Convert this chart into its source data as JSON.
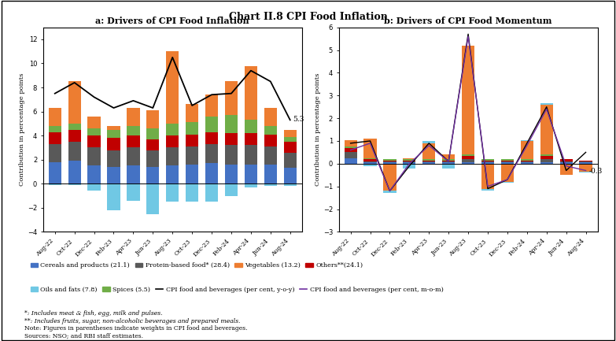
{
  "title": "Chart II.8 CPI Food Inflation",
  "panel_a_title": "a: Drivers of CPI Food Inflation",
  "panel_b_title": "b: Drivers of CPI Food Momentum",
  "x_labels": [
    "Aug-22",
    "Oct-22",
    "Dec-22",
    "Feb-23",
    "Apr-23",
    "Jun-23",
    "Aug-23",
    "Oct-23",
    "Dec-23",
    "Feb-24",
    "Apr-24",
    "Jun-24",
    "Aug-24"
  ],
  "ylabel_a": "Contribution in percentage points",
  "ylabel_b": "Contribution in percentage points",
  "colors": {
    "cereals": "#4472C4",
    "protein": "#595959",
    "vegetables": "#ED7D31",
    "others": "#C00000",
    "oils": "#70C8E4",
    "spices": "#70AD47"
  },
  "panel_a": {
    "cereals": [
      1.8,
      1.9,
      1.5,
      1.4,
      1.5,
      1.4,
      1.5,
      1.6,
      1.7,
      1.6,
      1.6,
      1.6,
      1.3
    ],
    "protein": [
      1.5,
      1.6,
      1.5,
      1.4,
      1.5,
      1.4,
      1.5,
      1.5,
      1.6,
      1.6,
      1.6,
      1.5,
      1.3
    ],
    "others": [
      1.0,
      1.0,
      1.0,
      1.0,
      1.0,
      0.9,
      1.0,
      1.0,
      1.0,
      1.0,
      1.0,
      1.0,
      0.9
    ],
    "spices": [
      0.5,
      0.5,
      0.6,
      0.7,
      0.8,
      0.9,
      1.0,
      1.0,
      1.3,
      1.5,
      1.1,
      0.7,
      0.4
    ],
    "vegetables": [
      1.5,
      3.5,
      1.0,
      0.3,
      1.5,
      1.5,
      6.0,
      1.5,
      1.8,
      2.8,
      4.5,
      1.5,
      0.6
    ],
    "oils": [
      -0.1,
      -0.1,
      -0.6,
      -2.2,
      -1.4,
      -2.5,
      -1.5,
      -1.5,
      -1.5,
      -1.0,
      -0.3,
      -0.2,
      -0.2
    ]
  },
  "panel_a_line": [
    7.5,
    8.4,
    7.2,
    6.3,
    6.9,
    6.3,
    10.5,
    6.5,
    7.4,
    7.5,
    9.4,
    8.5,
    5.3
  ],
  "panel_b": {
    "cereals": [
      0.25,
      0.05,
      0.05,
      0.05,
      0.05,
      0.05,
      0.05,
      0.05,
      0.05,
      0.05,
      0.05,
      0.05,
      0.05
    ],
    "protein": [
      0.25,
      0.05,
      0.05,
      0.05,
      0.05,
      0.05,
      0.15,
      0.05,
      0.05,
      0.05,
      0.15,
      0.05,
      0.05
    ],
    "others": [
      0.2,
      0.1,
      0.05,
      0.05,
      0.05,
      0.05,
      0.15,
      0.05,
      0.05,
      0.05,
      0.15,
      0.1,
      0.05
    ],
    "spices": [
      0.05,
      0.05,
      0.05,
      0.05,
      0.05,
      0.05,
      0.05,
      0.05,
      0.05,
      0.05,
      0.05,
      0.0,
      0.0
    ],
    "vegetables": [
      0.3,
      0.85,
      -1.2,
      0.05,
      0.7,
      0.2,
      4.8,
      -1.1,
      -0.8,
      0.8,
      2.2,
      -0.5,
      -0.35
    ],
    "oils": [
      -0.05,
      -0.1,
      -0.1,
      -0.2,
      0.1,
      -0.2,
      -0.05,
      -0.1,
      -0.05,
      0.05,
      0.05,
      0.0,
      -0.05
    ]
  },
  "panel_b_line_yoy": [
    0.9,
    1.0,
    -1.2,
    -0.1,
    0.9,
    0.1,
    5.7,
    -1.1,
    -0.7,
    0.9,
    2.5,
    -0.3,
    0.5
  ],
  "panel_b_line_mom": [
    0.6,
    0.9,
    -1.2,
    0.0,
    0.8,
    0.1,
    5.6,
    -1.0,
    -0.7,
    0.8,
    2.4,
    -0.1,
    -0.3
  ],
  "legend": {
    "cereals": "Cereals and products (21.1)",
    "protein": "Protein-based food* (28.4)",
    "vegetables": "Vegetables (13.2)",
    "others": "Others**(24.1)",
    "oils": "Oils and fats (7.8)",
    "spices": "Spices (5.5)",
    "line_yoy": "CPI food and beverages (per cent, y-o-y)",
    "line_mom": "CPI food and beverages (per cent, m-o-m)"
  },
  "footnotes": [
    "*: Includes meat & fish, egg, milk and pulses.",
    "**: Includes fruits, sugar, non-alcoholic beverages and prepared meals.",
    "Note: Figures in parentheses indicate weights in CPI food and beverages.",
    "Sources: NSO; and RBI staff estimates."
  ],
  "panel_a_ylim": [
    -4,
    13
  ],
  "panel_a_yticks": [
    -4,
    -2,
    0,
    2,
    4,
    6,
    8,
    10,
    12
  ],
  "panel_b_ylim": [
    -3,
    6
  ],
  "panel_b_yticks": [
    -3,
    -2,
    -1,
    0,
    1,
    2,
    3,
    4,
    5,
    6
  ],
  "annotation_a": "5.3",
  "annotation_b": "-0.3"
}
